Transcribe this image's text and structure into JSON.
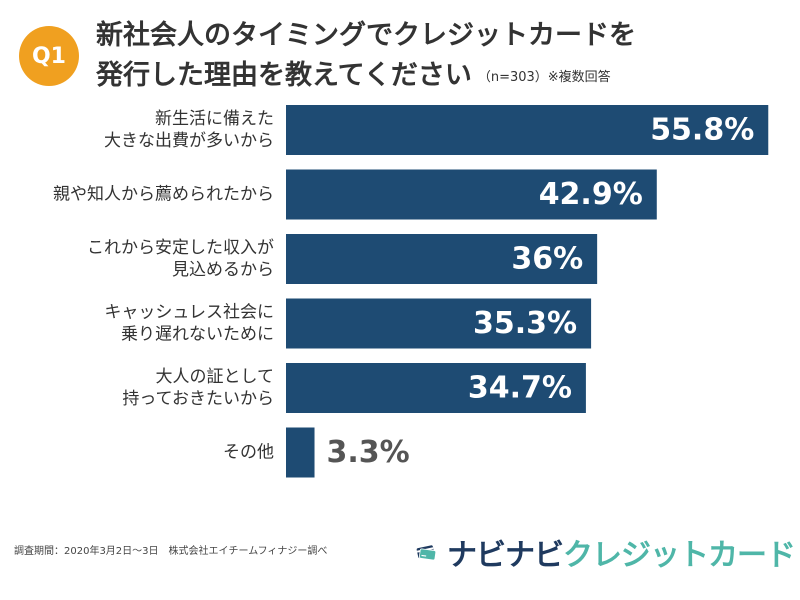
{
  "header": {
    "badge": "Q1",
    "title_line1": "新社会人のタイミングでクレジットカードを",
    "title_line2": "発行した理由を教えてください",
    "title_note": "（n=303）※複数回答"
  },
  "colors": {
    "bar": "#1e4b73",
    "badge": "#f0a020",
    "outside_label": "#555555"
  },
  "chart_data": {
    "type": "bar",
    "orientation": "horizontal",
    "unit": "%",
    "categories": [
      [
        "新生活に備えた",
        "大きな出費が多いから"
      ],
      [
        "親や知人から薦められたから"
      ],
      [
        "これから安定した収入が",
        "見込めるから"
      ],
      [
        "キャッシュレス社会に",
        "乗り遅れないために"
      ],
      [
        "大人の証として",
        "持っておきたいから"
      ],
      [
        "その他"
      ]
    ],
    "values": [
      55.8,
      42.9,
      36,
      35.3,
      34.7,
      3.3
    ],
    "value_labels": [
      "55.8%",
      "42.9%",
      "36%",
      "35.3%",
      "34.7%",
      "3.3%"
    ],
    "xlim": [
      0,
      56
    ],
    "grid": false,
    "legend": "none"
  },
  "footer": {
    "note": "調査期間：2020年3月2日〜3日　株式会社エイチームフィナジー調べ",
    "brand_part1": "ナビナビ",
    "brand_part2": "クレジットカード",
    "brand_icon": "credit-card-icon"
  }
}
